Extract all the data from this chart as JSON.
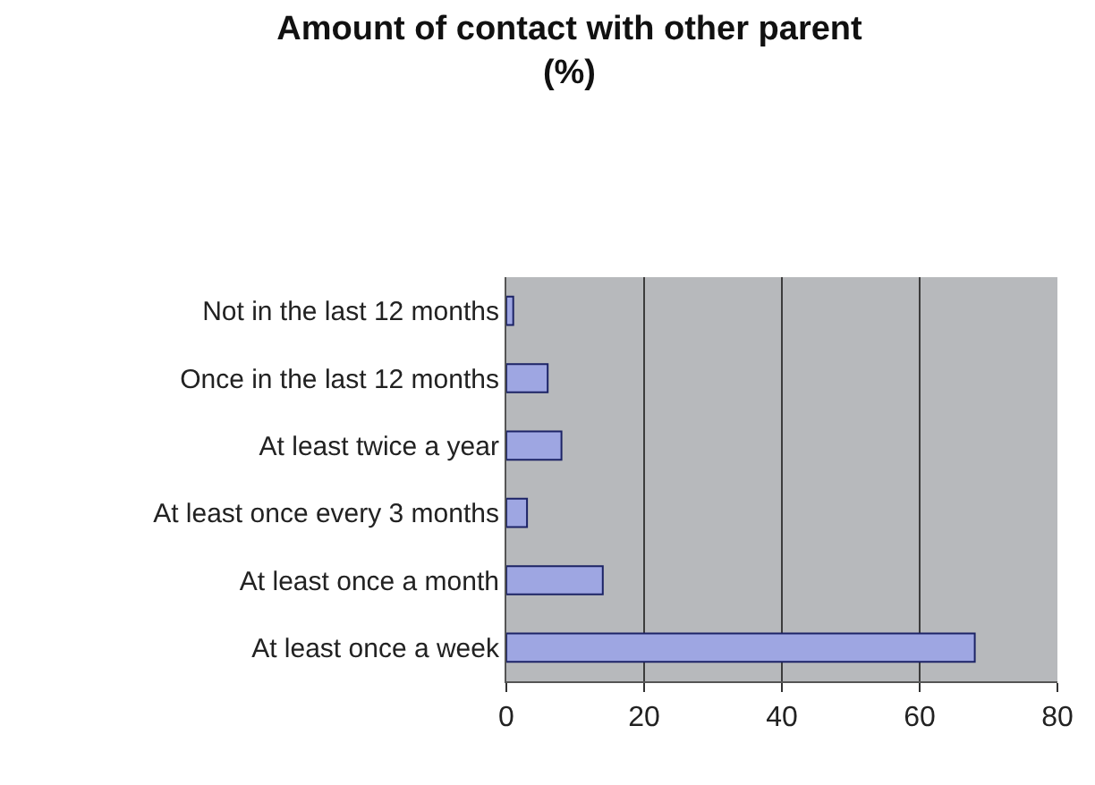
{
  "chart_data": {
    "type": "bar",
    "orientation": "horizontal",
    "title": "Amount of contact with other parent\n(%)",
    "categories": [
      "Not in the last 12 months",
      "Once in the last 12 months",
      "At least twice a year",
      "At least once every 3 months",
      "At least once a month",
      "At least once a week"
    ],
    "values": [
      1,
      6,
      8,
      3,
      14,
      68
    ],
    "color": "#9ea6e2",
    "xlim": [
      0,
      80
    ],
    "xticks": [
      0,
      20,
      40,
      60,
      80
    ],
    "grid": "x"
  }
}
